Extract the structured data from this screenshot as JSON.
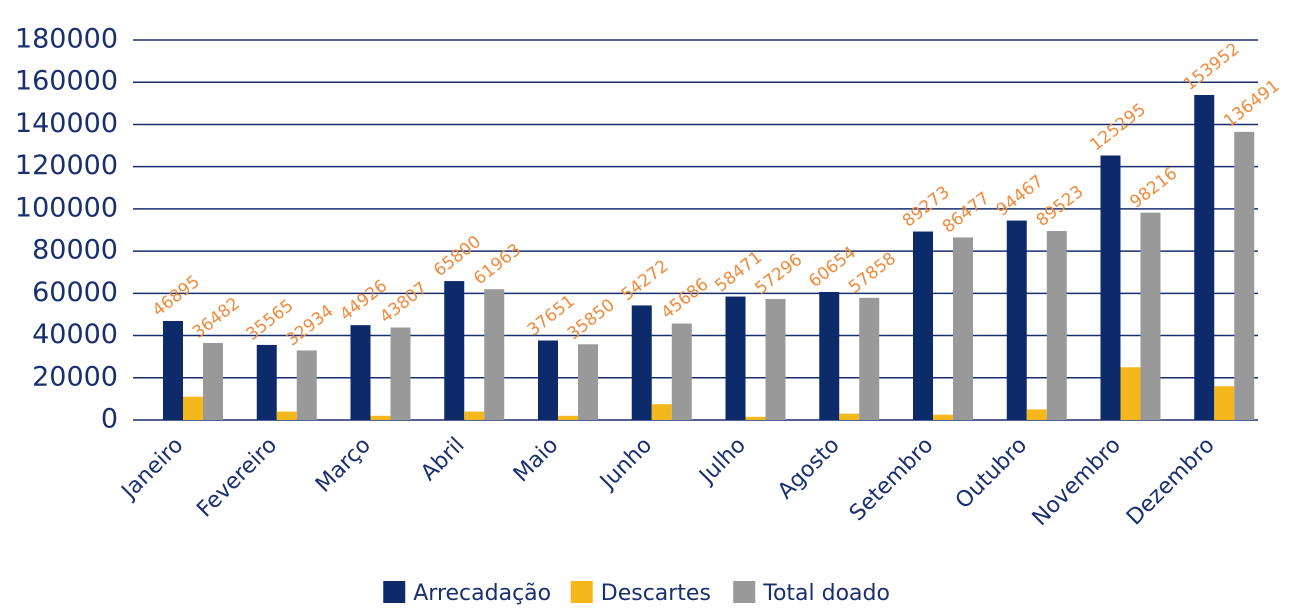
{
  "chart_data": {
    "type": "bar",
    "categories": [
      "Janeiro",
      "Fevereiro",
      "Março",
      "Abril",
      "Maio",
      "Junho",
      "Julho",
      "Agosto",
      "Setembro",
      "Outubro",
      "Novembro",
      "Dezembro"
    ],
    "series": [
      {
        "name": "Arrecadação",
        "color": "#0d2a6b",
        "values": [
          46895,
          35565,
          44926,
          65800,
          37651,
          54272,
          58471,
          60654,
          89273,
          94467,
          125295,
          153952
        ],
        "labels": true
      },
      {
        "name": "Descartes",
        "color": "#f5b81c",
        "values": [
          11000,
          4000,
          2000,
          4000,
          2000,
          7500,
          1500,
          3000,
          2500,
          5000,
          25000,
          16000
        ],
        "labels": false
      },
      {
        "name": "Total doado",
        "color": "#999999",
        "values": [
          36482,
          32934,
          43807,
          61963,
          35850,
          45686,
          57296,
          57858,
          86477,
          89523,
          98216,
          136491
        ],
        "labels": true
      }
    ],
    "ylim": [
      0,
      180000
    ],
    "yticks": [
      0,
      20000,
      40000,
      60000,
      80000,
      100000,
      120000,
      140000,
      160000,
      180000
    ],
    "grid": true,
    "legend": "bottom"
  }
}
